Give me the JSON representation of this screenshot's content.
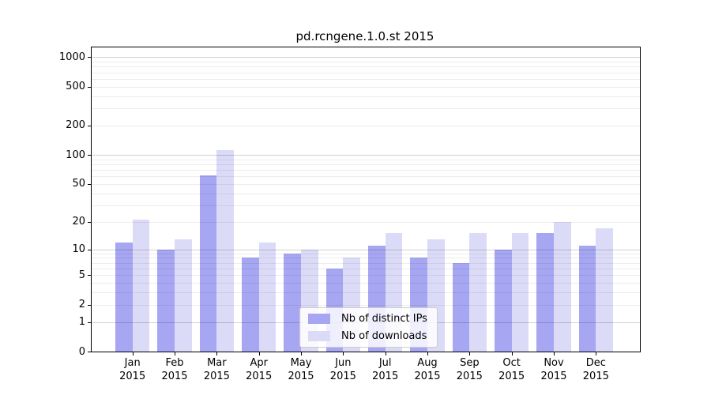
{
  "page": {
    "background": "#ffffff"
  },
  "chart_data": {
    "type": "bar",
    "title": "pd.rcngene.1.0.st 2015",
    "categories": [
      "Jan",
      "Feb",
      "Mar",
      "Apr",
      "May",
      "Jun",
      "Jul",
      "Aug",
      "Sep",
      "Oct",
      "Nov",
      "Dec"
    ],
    "x_year_label": "2015",
    "series": [
      {
        "name": "Nb of distinct IPs",
        "color": "#a6a6f2",
        "values": [
          12,
          10,
          62,
          8,
          9,
          6,
          11,
          8,
          7,
          10,
          15,
          11
        ]
      },
      {
        "name": "Nb of downloads",
        "color": "#dbdbf8",
        "values": [
          21,
          13,
          112,
          12,
          10,
          8,
          15,
          13,
          15,
          15,
          20,
          17
        ]
      }
    ],
    "yscale": "log10(1+x)",
    "yticks": [
      0,
      1,
      2,
      5,
      10,
      20,
      50,
      100,
      200,
      500,
      1000
    ],
    "ylim": [
      0,
      1258
    ],
    "xlabel": "",
    "ylabel": "",
    "grid": true,
    "legend_position": "inside-bottom-center",
    "colors": {
      "axis": "#000000",
      "grid_minor": "#ededed",
      "grid_decade": "#d1d1d1",
      "legend_border": "#cccccc"
    }
  }
}
